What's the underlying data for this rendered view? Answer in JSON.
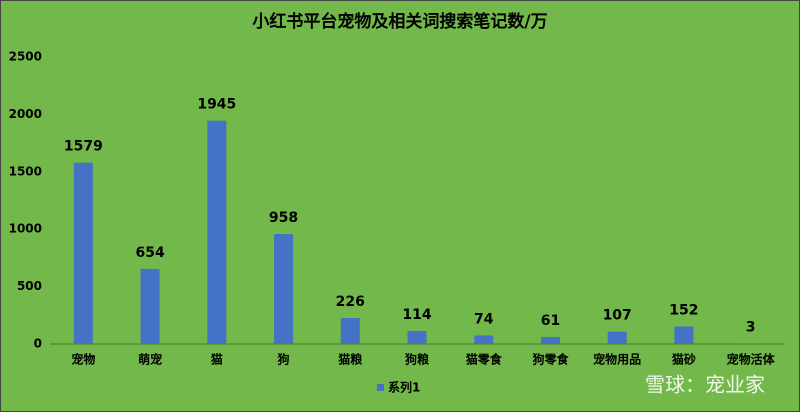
{
  "chart_data": {
    "type": "bar",
    "title": "小红书平台宠物及相关词搜索笔记数/万",
    "categories": [
      "宠物",
      "萌宠",
      "猫",
      "狗",
      "猫粮",
      "狗粮",
      "猫零食",
      "狗零食",
      "宠物用品",
      "猫砂",
      "宠物活体"
    ],
    "series": [
      {
        "name": "系列1",
        "color": "#4472c4",
        "values": [
          1579,
          654,
          1945,
          958,
          226,
          114,
          74,
          61,
          107,
          152,
          3
        ]
      }
    ],
    "ylim": [
      0,
      2500
    ],
    "yticks": [
      0,
      500,
      1000,
      1500,
      2000,
      2500
    ],
    "grid": false,
    "legend": "bottom",
    "watermark": "雪球：宠业家"
  }
}
